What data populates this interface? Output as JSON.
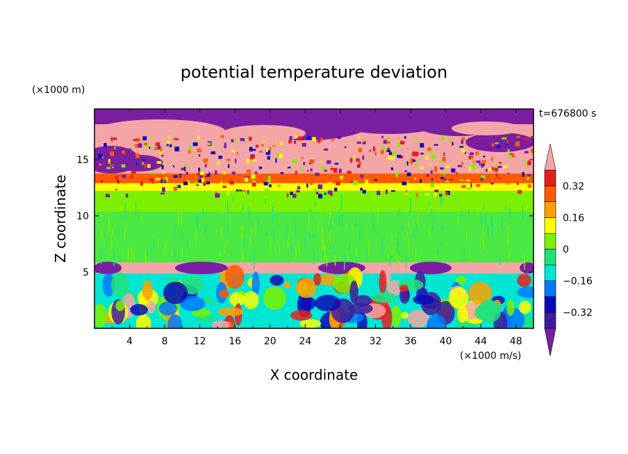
{
  "chart_data": {
    "type": "heatmap",
    "title": "potential temperature deviation",
    "xlabel": "X coordinate",
    "ylabel": "Z coordinate",
    "x_unit": "(×1000 m/s)",
    "y_unit": "(×1000 m)",
    "time_label": "t=676800 s",
    "xlim": [
      0,
      50
    ],
    "ylim": [
      0,
      19.5
    ],
    "x_ticks": [
      "4",
      "8",
      "12",
      "16",
      "20",
      "24",
      "28",
      "32",
      "36",
      "40",
      "44",
      "48"
    ],
    "y_ticks": [
      "5",
      "10",
      "15"
    ],
    "colorbar": {
      "levels": [
        -0.4,
        -0.32,
        -0.24,
        -0.16,
        -0.08,
        0,
        0.08,
        0.16,
        0.24,
        0.32,
        0.4
      ],
      "labels": [
        "0.32",
        "0.16",
        "0",
        "−0.16",
        "−0.32"
      ],
      "colors": [
        "#7b1fa2",
        "#3f1c9c",
        "#0a0ab8",
        "#0078ff",
        "#00e6d2",
        "#22e07a",
        "#7cf000",
        "#ffff00",
        "#ffa000",
        "#ff5a00",
        "#e61e1e",
        "#f4a6a6"
      ]
    },
    "regions": [
      {
        "y": [
          18.1,
          19.5
        ],
        "level": "alternating purple/pink"
      },
      {
        "y": [
          16.3,
          18.1
        ],
        "level": "> 0.4"
      },
      {
        "y": [
          14.0,
          16.3
        ],
        "level": "mixed purple/pink"
      },
      {
        "y": [
          12.2,
          14.0
        ],
        "level": "0.16 to 0.4"
      },
      {
        "y": [
          6.0,
          12.2
        ],
        "level": "-0.08 to 0.08"
      },
      {
        "y": [
          4.8,
          6.0
        ],
        "level": "> 0.4 with purple domes"
      },
      {
        "y": [
          0.0,
          4.8
        ],
        "level": "oscillating -0.4 to 0.4"
      }
    ]
  }
}
